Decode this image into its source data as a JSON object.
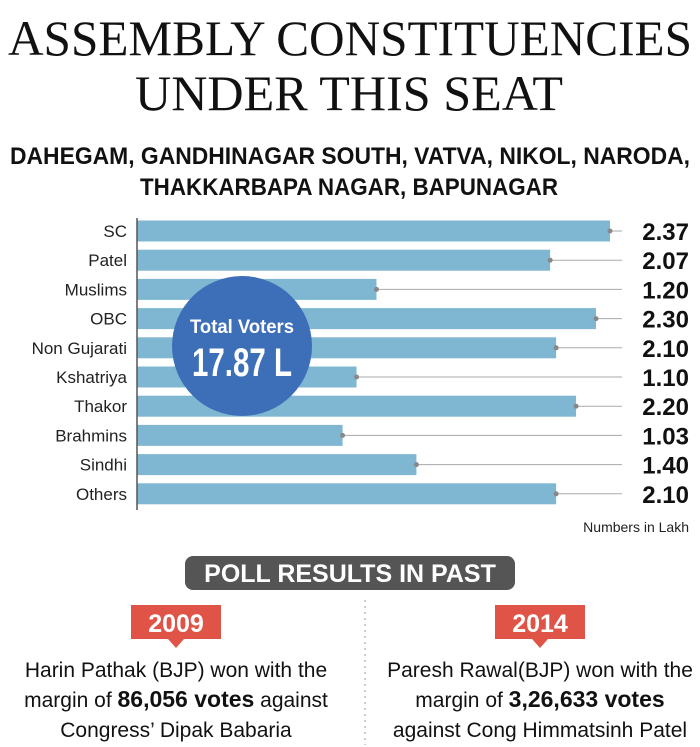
{
  "header": {
    "title": [
      "ASSEMBLY CONSTITUENCIES",
      "UNDER THIS SEAT"
    ],
    "subtitle": [
      "DAHEGAM, GANDHINAGAR SOUTH, VATVA, NIKOL, NARODA,",
      "THAKKARBAPA NAGAR, BAPUNAGAR"
    ]
  },
  "chart_data": {
    "type": "bar",
    "orientation": "horizontal",
    "color": "#7fb7d3",
    "categories": [
      "SC",
      "Patel",
      "Muslims",
      "OBC",
      "Non Gujarati",
      "Kshatriya",
      "Thakor",
      "Brahmins",
      "Sindhi",
      "Others"
    ],
    "values": [
      2.37,
      2.07,
      1.2,
      2.3,
      2.1,
      1.1,
      2.2,
      1.03,
      1.4,
      2.1
    ],
    "value_labels": [
      "2.37",
      "2.07",
      "1.20",
      "2.30",
      "2.10",
      "1.10",
      "2.20",
      "1.03",
      "1.40",
      "2.10"
    ],
    "annotations": {
      "total_label": "Total Voters",
      "total_value": "17.87 L",
      "units_note": "Numbers in Lakh"
    }
  },
  "poll_results": {
    "heading": "POLL RESULTS IN PAST",
    "entries": [
      {
        "year": "2009",
        "lines": [
          [
            {
              "text": "Harin Pathak (BJP) won with the"
            }
          ],
          [
            {
              "text": "margin of "
            },
            {
              "text": "86,056 votes",
              "bold": true
            },
            {
              "text": " against"
            }
          ],
          [
            {
              "text": "Congress’ Dipak Babaria"
            }
          ]
        ]
      },
      {
        "year": "2014",
        "lines": [
          [
            {
              "text": "Paresh Rawal(BJP) won with the"
            }
          ],
          [
            {
              "text": "margin of "
            },
            {
              "text": "3,26,633 votes",
              "bold": true
            }
          ],
          [
            {
              "text": "against Cong Himmatsinh Patel"
            }
          ]
        ]
      }
    ]
  }
}
